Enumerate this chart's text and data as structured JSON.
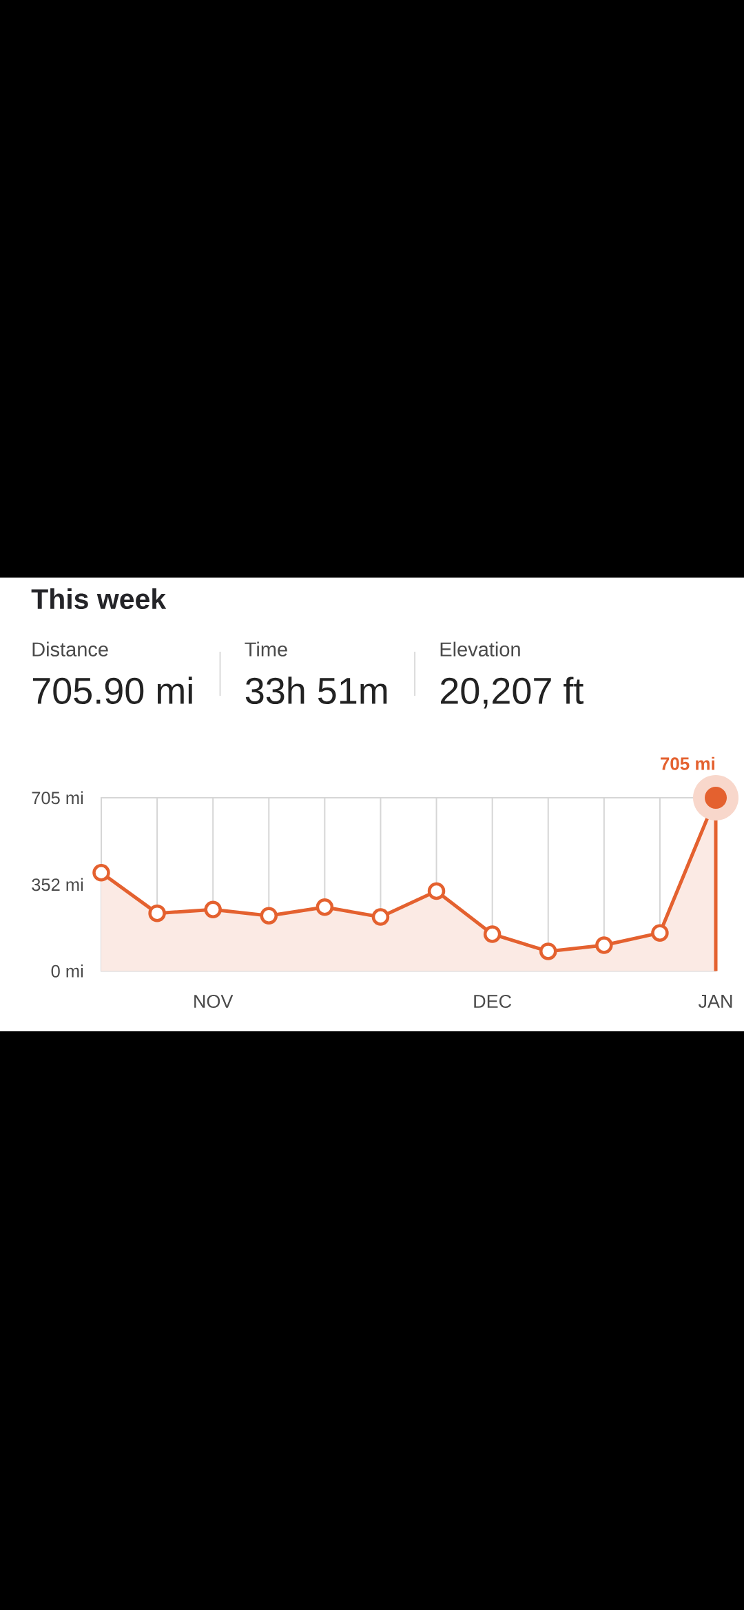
{
  "chart_data": {
    "type": "area",
    "title": "This week",
    "annotations": [
      "Distance",
      "705.90 mi",
      "Time",
      "33h 51m",
      "Elevation",
      "20,207 ft"
    ],
    "categories": [
      null,
      null,
      "NOV",
      null,
      null,
      null,
      null,
      "DEC",
      null,
      null,
      null,
      "JAN"
    ],
    "series": [
      {
        "color": "#e4612f",
        "values": [
          400,
          235,
          250,
          225,
          260,
          220,
          325,
          150,
          80,
          105,
          155,
          705
        ]
      },
      {
        "type": "lollipop",
        "color": "#e4612f",
        "values": [
          null,
          null,
          null,
          null,
          null,
          null,
          null,
          null,
          null,
          null,
          null,
          705
        ],
        "value_labels": [
          null,
          null,
          null,
          null,
          null,
          null,
          null,
          null,
          null,
          null,
          null,
          "705 mi"
        ]
      }
    ],
    "ylim": [
      0,
      705
    ],
    "yticks": [
      {
        "value": 0,
        "label": "0 mi"
      },
      {
        "value": 352,
        "label": "352 mi"
      },
      {
        "value": 705,
        "label": "705 mi"
      }
    ],
    "grid": "x",
    "marker": "circle"
  }
}
